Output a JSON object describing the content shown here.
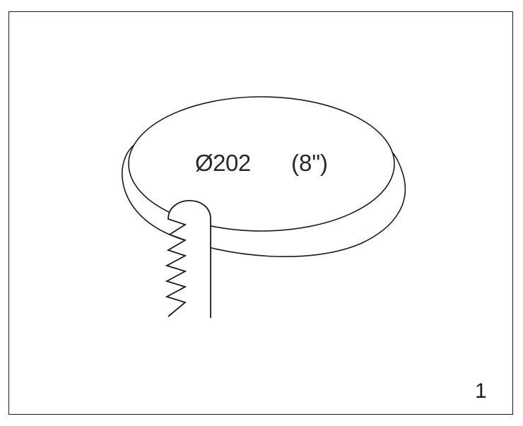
{
  "diagram": {
    "diameter_metric": "Ø202",
    "diameter_imperial": "(8\")",
    "figure_number": "1",
    "parts": {
      "disc": "disc-outline",
      "blade": "jigsaw-blade"
    }
  }
}
